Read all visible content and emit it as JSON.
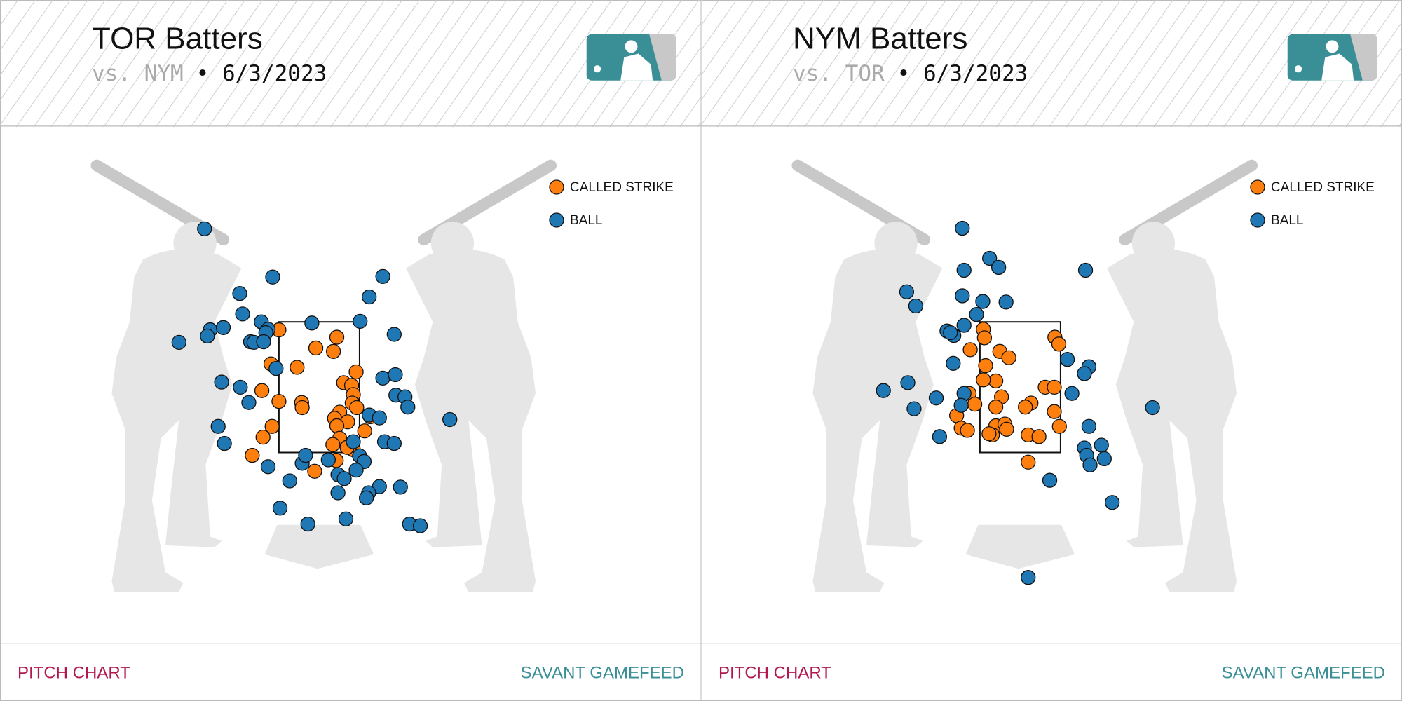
{
  "chart_data": [
    {
      "type": "scatter",
      "title": "TOR Batters",
      "opponent": "vs. NYM",
      "date": "• 6/3/2023",
      "footer_left": "PITCH CHART",
      "footer_right": "SAVANT GAMEFEED",
      "legend": "upper right",
      "xlim": [
        -3,
        3
      ],
      "ylim": [
        -1,
        6
      ],
      "strike_zone": {
        "x": [
          -0.71,
          0.71
        ],
        "z": [
          1.5,
          3.8
        ]
      },
      "series": [
        {
          "name": "CALLED STRIKE",
          "color": "#ff7f0e",
          "x": [
            -0.71,
            0.31,
            -0.06,
            0.25,
            -0.85,
            -0.39,
            0.65,
            0.43,
            0.57,
            -1.01,
            0.6,
            -0.31,
            -0.71,
            0.58,
            0.66,
            -0.3,
            0.36,
            0.27,
            0.5,
            0.9,
            0.31,
            0.8,
            -0.99,
            0.36,
            0.24,
            0.6,
            -1.18,
            -0.83,
            0.3,
            -0.08,
            0.49
          ],
          "values": [
            3.66,
            3.53,
            3.34,
            3.28,
            3.06,
            3.0,
            2.92,
            2.73,
            2.68,
            2.59,
            2.52,
            2.38,
            2.4,
            2.37,
            2.29,
            2.29,
            2.21,
            2.1,
            2.04,
            2.13,
            1.97,
            1.88,
            1.77,
            1.75,
            1.64,
            1.55,
            1.45,
            1.96,
            1.36,
            1.17,
            1.59
          ]
        },
        {
          "name": "BALL",
          "color": "#1f77b4",
          "x": [
            -2.02,
            -0.82,
            1.12,
            -1.4,
            0.88,
            -1.35,
            -1.02,
            -0.13,
            0.72,
            -1.92,
            -1.69,
            -0.9,
            -0.94,
            -1.97,
            -2.47,
            -1.21,
            -1.15,
            -0.98,
            1.32,
            -0.76,
            1.12,
            1.34,
            -1.72,
            -1.39,
            -1.24,
            1.35,
            1.51,
            1.56,
            0.88,
            1.06,
            -1.78,
            -1.67,
            1.15,
            1.32,
            2.3,
            0.6,
            0.71,
            0.79,
            -0.9,
            -0.3,
            -0.24,
            0.16,
            0.65,
            -0.52,
            0.33,
            0.44,
            1.06,
            1.43,
            0.87,
            0.83,
            0.33,
            -0.69,
            -0.2,
            0.47,
            1.59,
            1.78
          ],
          "values": [
            5.44,
            4.59,
            4.6,
            4.3,
            4.24,
            3.94,
            3.8,
            3.78,
            3.81,
            3.66,
            3.7,
            3.67,
            3.61,
            3.55,
            3.44,
            3.45,
            3.44,
            3.45,
            3.58,
            2.98,
            2.81,
            2.87,
            2.74,
            2.65,
            2.38,
            2.51,
            2.48,
            2.3,
            2.16,
            2.11,
            1.96,
            1.66,
            1.69,
            1.66,
            2.08,
            1.69,
            1.44,
            1.34,
            1.25,
            1.31,
            1.45,
            1.37,
            1.19,
            1.0,
            1.11,
            1.04,
            0.9,
            0.89,
            0.79,
            0.7,
            0.79,
            0.52,
            0.24,
            0.33,
            0.24,
            0.21
          ]
        }
      ]
    },
    {
      "type": "scatter",
      "title": "NYM Batters",
      "opponent": "vs. TOR",
      "date": "• 6/3/2023",
      "footer_left": "PITCH CHART",
      "footer_right": "SAVANT GAMEFEED",
      "legend": "upper right",
      "xlim": [
        -3,
        3
      ],
      "ylim": [
        -1,
        6
      ],
      "strike_zone": {
        "x": [
          -0.71,
          0.71
        ],
        "z": [
          1.5,
          3.8
        ]
      },
      "series": [
        {
          "name": "CALLED STRIKE",
          "color": "#ff7f0e",
          "x": [
            -0.65,
            0.61,
            -0.63,
            0.68,
            -0.36,
            -0.88,
            -0.2,
            -0.61,
            -0.43,
            -0.65,
            0.44,
            0.6,
            -0.33,
            -0.9,
            -0.8,
            0.19,
            0.09,
            -0.43,
            0.6,
            -1.12,
            -0.43,
            -0.27,
            0.69,
            -1.04,
            -0.93,
            -0.24,
            -0.49,
            -0.55,
            0.14,
            0.33,
            0.14
          ],
          "values": [
            3.67,
            3.53,
            3.52,
            3.41,
            3.28,
            3.31,
            3.17,
            3.03,
            2.76,
            2.78,
            2.65,
            2.65,
            2.48,
            2.54,
            2.35,
            2.37,
            2.3,
            2.3,
            2.22,
            2.15,
            1.97,
            2.0,
            1.96,
            1.93,
            1.89,
            1.91,
            1.81,
            1.83,
            1.81,
            1.78,
            1.33
          ]
        },
        {
          "name": "BALL",
          "color": "#1f77b4",
          "x": [
            -1.02,
            -0.54,
            -0.38,
            -0.99,
            1.15,
            -2.0,
            -1.02,
            -0.66,
            -0.25,
            -1.84,
            -0.77,
            -0.99,
            -1.29,
            -1.17,
            -1.23,
            0.83,
            -1.18,
            1.21,
            1.13,
            -2.41,
            -1.98,
            -1.48,
            -0.99,
            -1.04,
            0.91,
            -1.87,
            2.33,
            -1.42,
            1.21,
            1.13,
            1.43,
            1.17,
            1.48,
            1.23,
            0.52,
            1.62,
            0.14
          ],
          "values": [
            5.45,
            4.92,
            4.76,
            4.71,
            4.71,
            4.33,
            4.26,
            4.16,
            4.15,
            4.08,
            3.93,
            3.74,
            3.64,
            3.56,
            3.61,
            3.14,
            3.07,
            3.01,
            2.89,
            2.59,
            2.73,
            2.46,
            2.54,
            2.33,
            2.54,
            2.27,
            2.29,
            1.78,
            1.96,
            1.58,
            1.63,
            1.45,
            1.39,
            1.28,
            1.01,
            0.62,
            -0.7
          ]
        }
      ]
    }
  ]
}
